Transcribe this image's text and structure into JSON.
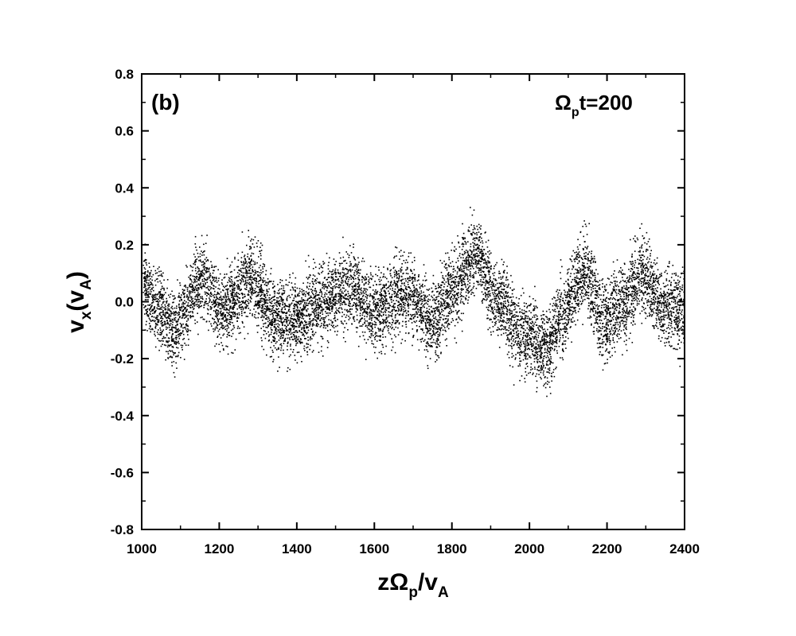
{
  "chart_data": {
    "type": "scatter",
    "panel_label": "(b)",
    "time_annotation": {
      "symbol": "Ω",
      "subscript": "p",
      "suffix": "t=200"
    },
    "xlabel": {
      "prefix": "zΩ",
      "sub1": "p",
      "mid": "/v",
      "sub2": "A"
    },
    "ylabel": {
      "base": "v",
      "sub": "x",
      "open": "(v",
      "sub2": "A",
      "close": ")"
    },
    "xlim": [
      1000,
      2400
    ],
    "ylim": [
      -0.8,
      0.8
    ],
    "x_ticks": [
      "1000",
      "1200",
      "1400",
      "1600",
      "1800",
      "2000",
      "2200",
      "2400"
    ],
    "y_ticks": [
      "0.8",
      "0.6",
      "0.4",
      "0.2",
      "0.0",
      "-0.2",
      "-0.4",
      "-0.6",
      "-0.8"
    ],
    "grid": false,
    "point_color": "#000000",
    "mean_curve": {
      "x": [
        1000,
        1030,
        1080,
        1150,
        1210,
        1280,
        1340,
        1400,
        1450,
        1530,
        1600,
        1680,
        1750,
        1800,
        1860,
        1920,
        1980,
        2040,
        2080,
        2140,
        2190,
        2240,
        2290,
        2340,
        2400
      ],
      "y": [
        0.06,
        0.0,
        -0.1,
        0.08,
        -0.03,
        0.08,
        -0.05,
        -0.06,
        -0.01,
        0.05,
        -0.03,
        0.03,
        -0.07,
        0.04,
        0.17,
        0.0,
        -0.11,
        -0.16,
        -0.05,
        0.11,
        -0.07,
        0.0,
        0.1,
        -0.01,
        -0.03
      ]
    },
    "scatter_half_width": 0.12
  }
}
